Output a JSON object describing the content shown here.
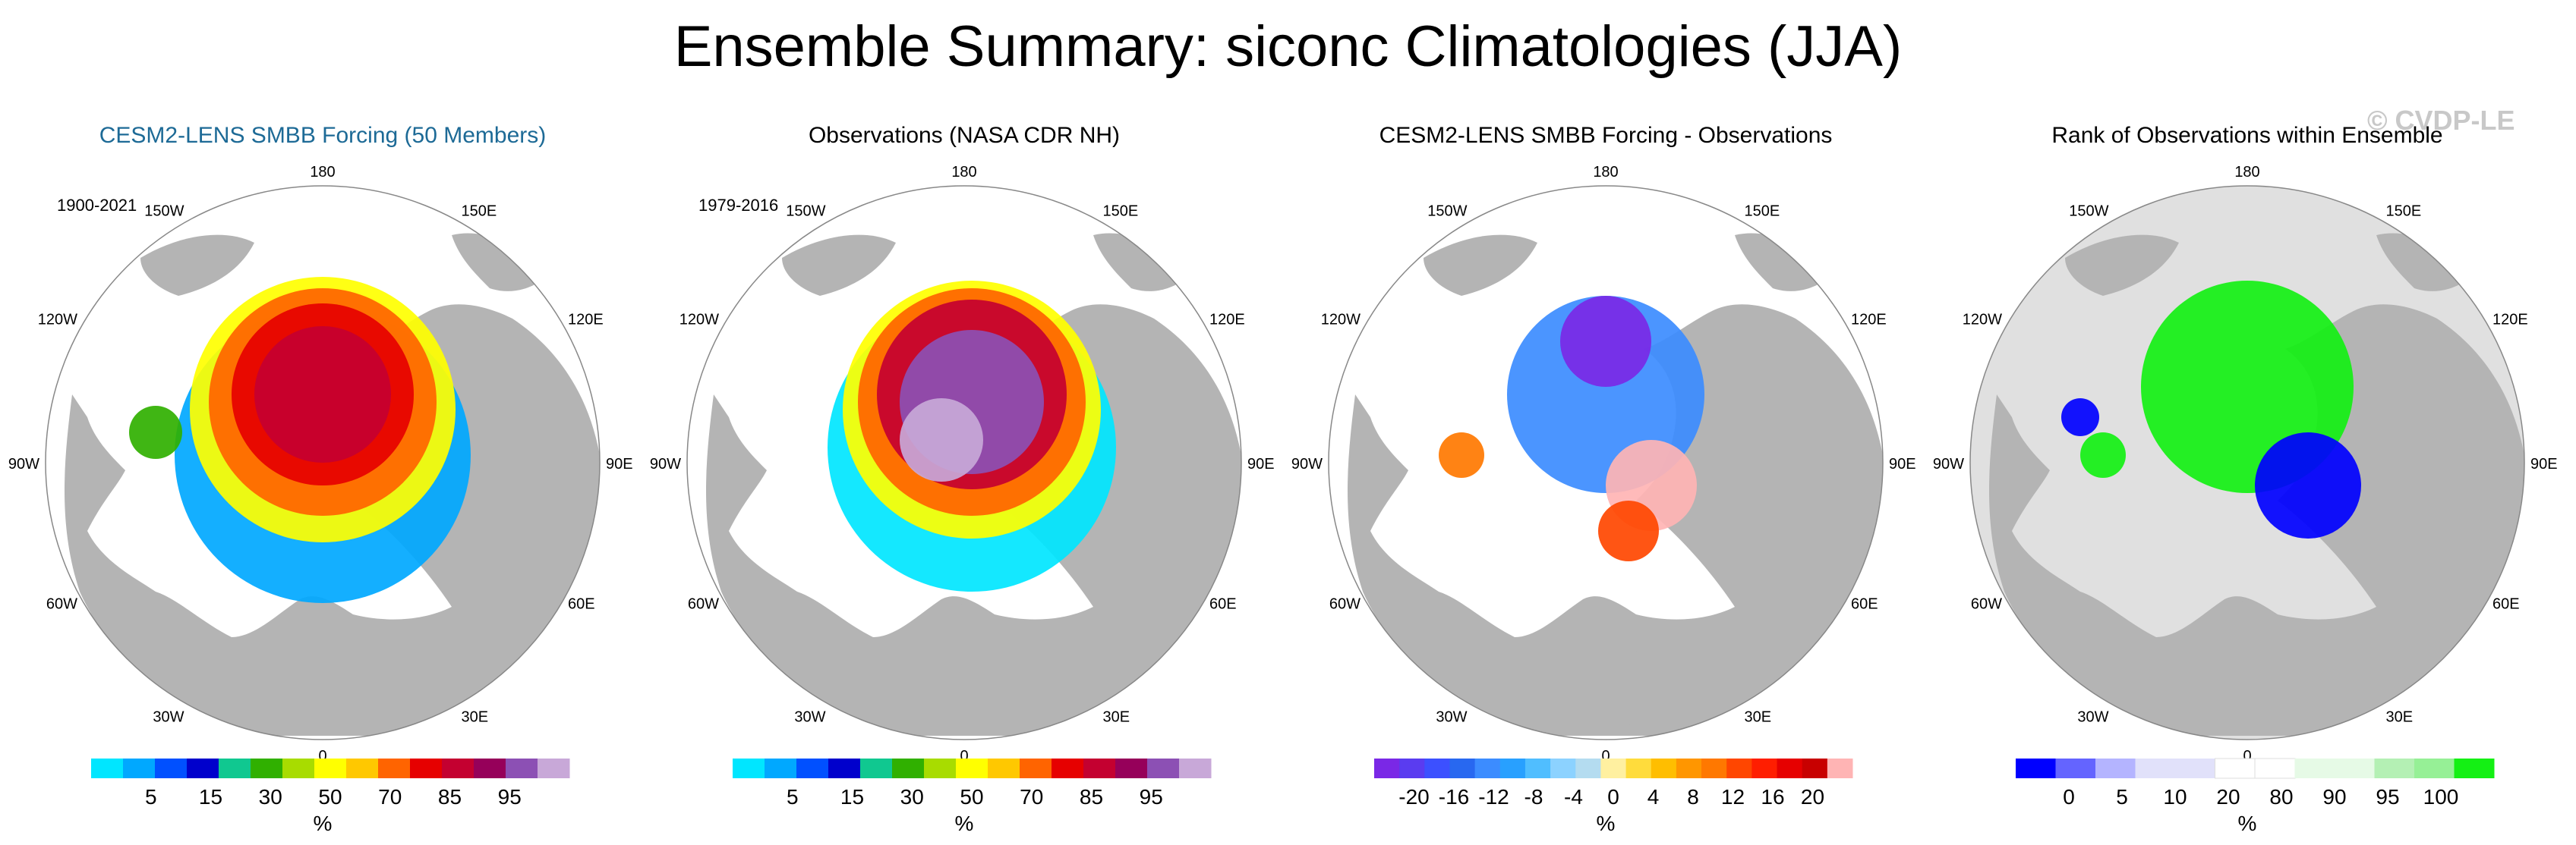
{
  "title": "Ensemble Summary: siconc Climatologies (JJA)",
  "watermark": "© CVDP-LE",
  "longitude_labels": {
    "top": "180",
    "bottom": "0",
    "left_upper": "120W",
    "left_mid": "90W",
    "left_lower": "60W",
    "right_upper": "120E",
    "right_mid": "90E",
    "right_lower": "60E",
    "top_left": "150W",
    "top_right": "150E",
    "bottom_left": "30W",
    "bottom_right": "30E"
  },
  "colors": {
    "land": "#b4b4b4",
    "ocean": "#ffffff",
    "outside_mask": "#e0e0e0"
  },
  "panels": [
    {
      "title": "CESM2-LENS SMBB Forcing (50 Members)",
      "title_color": "#1d6a96",
      "period": "1900-2021",
      "colorbar": {
        "unit": "%",
        "colors": [
          "#00e6ff",
          "#00a8ff",
          "#0050ff",
          "#0000cc",
          "#10c890",
          "#30b000",
          "#a8dc00",
          "#ffff00",
          "#ffc800",
          "#ff6400",
          "#e60000",
          "#c40030",
          "#96005a",
          "#8c50b4",
          "#c8a8d8"
        ],
        "tick_labels": [
          "5",
          "15",
          "30",
          "50",
          "70",
          "85",
          "95"
        ]
      }
    },
    {
      "title": "Observations (NASA CDR NH)",
      "title_color": "#000000",
      "period": "1979-2016",
      "colorbar": {
        "unit": "%",
        "colors": [
          "#00e6ff",
          "#00a8ff",
          "#0050ff",
          "#0000cc",
          "#10c890",
          "#30b000",
          "#a8dc00",
          "#ffff00",
          "#ffc800",
          "#ff6400",
          "#e60000",
          "#c40030",
          "#96005a",
          "#8c50b4",
          "#c8a8d8"
        ],
        "tick_labels": [
          "5",
          "15",
          "30",
          "50",
          "70",
          "85",
          "95"
        ]
      }
    },
    {
      "title": "CESM2-LENS SMBB Forcing - Observations",
      "title_color": "#000000",
      "period": "",
      "colorbar": {
        "unit": "%",
        "colors": [
          "#7a28e6",
          "#5a3cf0",
          "#3c50ff",
          "#2868f0",
          "#3c8cff",
          "#28a0ff",
          "#50beff",
          "#8cd2ff",
          "#b4dcf0",
          "#fff0a0",
          "#ffdc3c",
          "#ffbe00",
          "#ff9600",
          "#ff7800",
          "#ff4600",
          "#ff1e00",
          "#e60000",
          "#c80000",
          "#ffb4b4"
        ],
        "tick_labels": [
          "-20",
          "-16",
          "-12",
          "-8",
          "-4",
          "0",
          "4",
          "8",
          "12",
          "16",
          "20"
        ]
      }
    },
    {
      "title": "Rank of Observations within Ensemble",
      "title_color": "#000000",
      "period": "",
      "colorbar": {
        "unit": "%",
        "colors": [
          "#0000ff",
          "#6464ff",
          "#b4b4ff",
          "#e1e1fa",
          "#e1e1fa",
          "#ffffff",
          "#ffffff",
          "#e6fae6",
          "#e6fae6",
          "#b4f0b4",
          "#96f096",
          "#14f014"
        ],
        "tick_labels": [
          "0",
          "5",
          "10",
          "20",
          "80",
          "90",
          "95",
          "100"
        ]
      }
    }
  ]
}
